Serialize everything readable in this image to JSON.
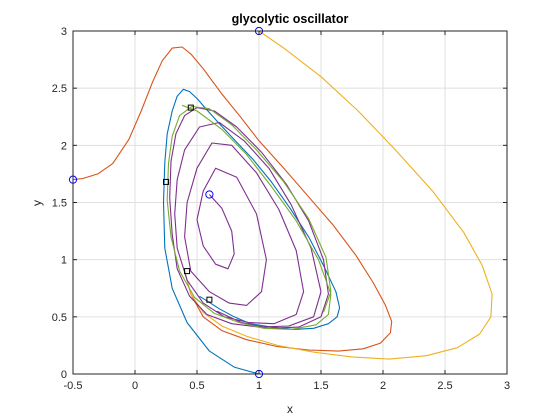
{
  "chart_data": {
    "type": "line",
    "title": "glycolytic oscillator",
    "xlabel": "x",
    "ylabel": "y",
    "xlim": [
      -0.5,
      3
    ],
    "ylim": [
      0,
      3
    ],
    "xticks": [
      "-0.5",
      "0",
      "0.5",
      "1",
      "1.5",
      "2",
      "2.5",
      "3"
    ],
    "yticks": [
      "0",
      "0.5",
      "1",
      "1.5",
      "2",
      "2.5",
      "3"
    ],
    "grid": true,
    "colors": {
      "axis": "#262626",
      "grid": "#dfdfdf",
      "marker": "#0000ff",
      "square": "#000000"
    },
    "series": [
      {
        "color": "#d95319",
        "x": [
          -0.5,
          -0.42,
          -0.3,
          -0.18,
          -0.05,
          0.05,
          0.14,
          0.22,
          0.3,
          0.38,
          0.45,
          0.55,
          0.7,
          0.85,
          1.0,
          1.2,
          1.4,
          1.6,
          1.78,
          1.92,
          2.02,
          2.07,
          2.06,
          1.98,
          1.84,
          1.64,
          1.4,
          1.15,
          0.9,
          0.7,
          0.55,
          0.45,
          0.4
        ],
        "y": [
          1.7,
          1.71,
          1.75,
          1.84,
          2.05,
          2.3,
          2.55,
          2.74,
          2.85,
          2.86,
          2.8,
          2.67,
          2.45,
          2.25,
          2.04,
          1.8,
          1.55,
          1.3,
          1.04,
          0.8,
          0.6,
          0.46,
          0.36,
          0.27,
          0.22,
          0.2,
          0.21,
          0.24,
          0.3,
          0.38,
          0.5,
          0.7,
          0.9
        ]
      },
      {
        "color": "#edb120",
        "x": [
          1.0,
          1.2,
          1.5,
          1.8,
          2.1,
          2.4,
          2.65,
          2.8,
          2.88,
          2.87,
          2.78,
          2.6,
          2.35,
          2.05,
          1.75,
          1.45,
          1.15,
          0.9,
          0.7,
          0.55,
          0.45,
          0.4
        ],
        "y": [
          3.0,
          2.85,
          2.6,
          2.3,
          1.96,
          1.6,
          1.24,
          0.95,
          0.7,
          0.5,
          0.35,
          0.23,
          0.16,
          0.13,
          0.15,
          0.19,
          0.25,
          0.33,
          0.42,
          0.54,
          0.7,
          0.9
        ]
      },
      {
        "color": "#0072bd",
        "x": [
          1.0,
          0.8,
          0.6,
          0.42,
          0.3,
          0.24,
          0.23,
          0.24,
          0.26,
          0.3,
          0.34,
          0.39,
          0.44,
          0.5,
          0.58,
          0.68,
          0.8,
          0.95,
          1.1,
          1.25,
          1.4,
          1.52,
          1.62,
          1.65,
          1.63,
          1.56,
          1.44,
          1.28,
          1.1,
          0.93,
          0.8,
          0.68,
          0.58,
          0.52
        ],
        "y": [
          0.0,
          0.06,
          0.2,
          0.45,
          0.75,
          1.1,
          1.5,
          1.85,
          2.1,
          2.3,
          2.43,
          2.49,
          2.47,
          2.41,
          2.31,
          2.19,
          2.05,
          1.88,
          1.68,
          1.45,
          1.2,
          0.95,
          0.72,
          0.58,
          0.5,
          0.44,
          0.4,
          0.39,
          0.41,
          0.44,
          0.5,
          0.57,
          0.64,
          0.68
        ]
      },
      {
        "color": "#7e2f8e",
        "x": [
          0.6,
          0.7,
          0.78,
          0.8,
          0.75,
          0.65,
          0.55,
          0.5,
          0.55,
          0.65,
          0.82,
          0.98,
          1.06,
          1.02,
          0.9,
          0.76,
          0.6,
          0.45,
          0.4,
          0.42,
          0.5,
          0.62,
          0.78,
          0.98,
          1.16,
          1.3,
          1.36,
          1.3,
          1.12,
          0.92,
          0.72,
          0.55,
          0.42,
          0.34,
          0.32,
          0.34,
          0.4,
          0.52,
          0.68,
          0.88,
          1.08,
          1.26,
          1.42,
          1.5,
          1.44,
          1.24,
          1.0,
          0.78,
          0.58,
          0.44,
          0.34,
          0.3,
          0.28,
          0.29,
          0.33,
          0.4,
          0.5,
          0.64,
          0.82,
          1.02,
          1.22,
          1.4,
          1.52,
          1.56,
          1.5,
          1.32,
          1.08,
          0.86,
          0.66
        ],
        "y": [
          1.57,
          1.45,
          1.25,
          1.05,
          0.92,
          0.96,
          1.12,
          1.35,
          1.6,
          1.8,
          1.72,
          1.4,
          1.0,
          0.72,
          0.6,
          0.62,
          0.72,
          0.9,
          1.2,
          1.5,
          1.8,
          2.02,
          2.0,
          1.76,
          1.44,
          1.08,
          0.72,
          0.52,
          0.44,
          0.45,
          0.5,
          0.62,
          0.82,
          1.1,
          1.4,
          1.7,
          1.96,
          2.16,
          2.2,
          2.04,
          1.8,
          1.48,
          1.1,
          0.72,
          0.5,
          0.42,
          0.41,
          0.44,
          0.52,
          0.68,
          0.92,
          1.22,
          1.54,
          1.86,
          2.1,
          2.26,
          2.33,
          2.3,
          2.16,
          1.94,
          1.66,
          1.34,
          1.0,
          0.7,
          0.5,
          0.41,
          0.4,
          0.45,
          0.55
        ]
      },
      {
        "color": "#77ac30",
        "x": [
          0.38,
          0.5,
          0.7,
          0.9,
          1.1,
          1.3,
          1.48,
          1.58,
          1.56,
          1.46,
          1.26,
          1.04,
          0.84,
          0.64,
          0.48,
          0.36,
          0.29,
          0.26,
          0.27,
          0.3,
          0.36,
          0.46,
          0.6,
          0.78,
          0.98,
          1.2,
          1.4,
          1.54,
          1.58,
          1.52
        ],
        "y": [
          2.35,
          2.3,
          2.14,
          1.92,
          1.64,
          1.34,
          1.0,
          0.7,
          0.52,
          0.43,
          0.39,
          0.4,
          0.45,
          0.53,
          0.67,
          0.9,
          1.2,
          1.52,
          1.84,
          2.08,
          2.26,
          2.34,
          2.32,
          2.18,
          1.96,
          1.68,
          1.36,
          1.02,
          0.72,
          0.54
        ]
      }
    ],
    "initial_points": [
      {
        "x": -0.5,
        "y": 1.7
      },
      {
        "x": 1.0,
        "y": 3.0
      },
      {
        "x": 1.0,
        "y": 0.0
      },
      {
        "x": 0.6,
        "y": 1.57
      }
    ],
    "cycle_markers": [
      {
        "x": 0.45,
        "y": 2.33
      },
      {
        "x": 0.25,
        "y": 1.68
      },
      {
        "x": 0.42,
        "y": 0.9
      },
      {
        "x": 0.6,
        "y": 0.65
      }
    ]
  }
}
